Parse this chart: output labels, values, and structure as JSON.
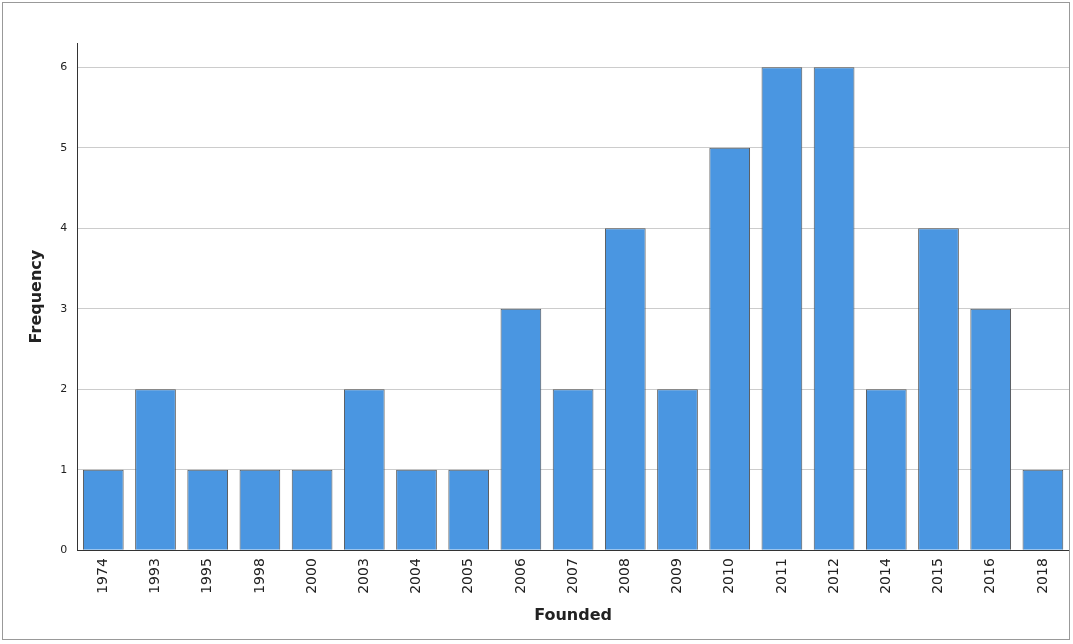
{
  "chart_data": {
    "type": "bar",
    "xlabel": "Founded",
    "ylabel": "Frequency",
    "categories": [
      "1974",
      "1993",
      "1995",
      "1998",
      "2000",
      "2003",
      "2004",
      "2005",
      "2006",
      "2007",
      "2008",
      "2009",
      "2010",
      "2011",
      "2012",
      "2014",
      "2015",
      "2016",
      "2018"
    ],
    "values": [
      1,
      2,
      1,
      1,
      1,
      2,
      1,
      1,
      3,
      2,
      4,
      2,
      5,
      6,
      6,
      2,
      4,
      3,
      1
    ],
    "color": "#4a96e1",
    "ylim": [
      0,
      6.3
    ],
    "yticks": [
      0,
      1,
      2,
      3,
      4,
      5,
      6
    ],
    "grid": "y"
  }
}
